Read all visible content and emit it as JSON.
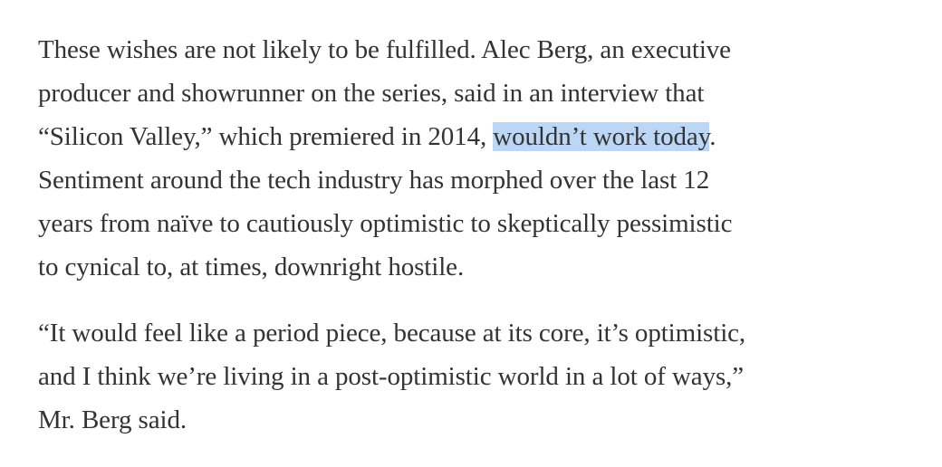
{
  "paragraphs": [
    {
      "lines": [
        "These wishes are not likely to be fulfilled. Alec Berg, an executive",
        "producer and showrunner on the series, said in an interview that",
        {
          "before": "“Silicon Valley,” which premiered in 2014, ",
          "highlight": "wouldn’t work today",
          "after": "."
        },
        "Sentiment around the tech industry has morphed over the last 12",
        "years from naïve to cautiously optimistic to skeptically pessimistic",
        "to cynical to, at times, downright hostile."
      ]
    },
    {
      "lines": [
        "“It would feel like a period piece, because at its core, it’s optimistic,",
        "and I think we’re living in a post-optimistic world in a lot of ways,”",
        "Mr. Berg said."
      ]
    }
  ]
}
